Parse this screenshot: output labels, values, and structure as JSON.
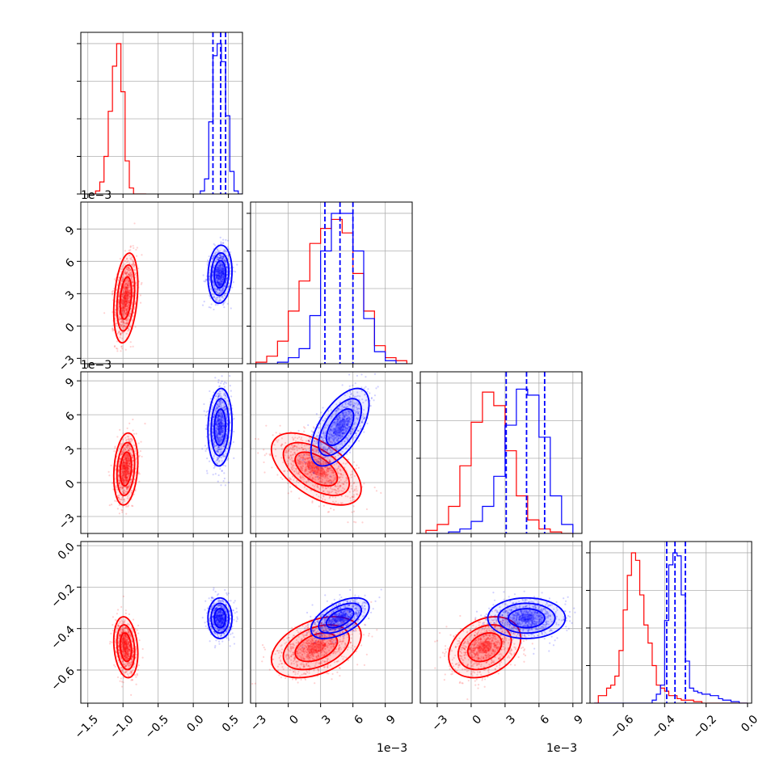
{
  "chart_data": {
    "type": "corner",
    "colors": {
      "red_series": "#ff0000",
      "blue_series": "#0000ff"
    },
    "grid": true,
    "parameters": [
      {
        "ticks": [
          "−1.5",
          "−1.0",
          "−0.5",
          "0.0",
          "0.5"
        ],
        "tick_values": [
          -1.5,
          -1.0,
          -0.5,
          0.0,
          0.5
        ],
        "range": [
          -1.6,
          0.7
        ],
        "offset_text": ""
      },
      {
        "ticks": [
          "−3",
          "0",
          "3",
          "6",
          "9"
        ],
        "tick_values": [
          -3,
          0,
          3,
          6,
          9
        ],
        "range": [
          -3.5,
          11.5
        ],
        "offset_text": "1e−3"
      },
      {
        "ticks": [
          "−3",
          "0",
          "3",
          "6",
          "9"
        ],
        "tick_values": [
          -3,
          0,
          3,
          6,
          9
        ],
        "range": [
          -4.5,
          9.8
        ],
        "offset_text": "1e−3"
      },
      {
        "ticks": [
          "−0.6",
          "−0.4",
          "−0.2",
          "0.0"
        ],
        "tick_values": [
          -0.6,
          -0.4,
          -0.2,
          0.0
        ],
        "range": [
          -0.76,
          0.02
        ],
        "offset_text": ""
      }
    ],
    "series": [
      {
        "color": "#ff0000",
        "means": [
          -0.96,
          2.6,
          1.2,
          -0.49
        ],
        "sds": [
          0.07,
          1.7,
          1.3,
          0.06
        ],
        "corr": [
          [
            1,
            0.3
          ],
          [
            1,
            3
          ],
          0.2,
          -0.55,
          0.4,
          0.3
        ]
      },
      {
        "color": "#0000ff",
        "means": [
          0.38,
          4.8,
          4.9,
          -0.35
        ],
        "sds": [
          0.07,
          1.1,
          1.4,
          0.04
        ],
        "corr": [
          [
            1,
            0.1
          ],
          [
            1,
            3
          ],
          0.1,
          0.6,
          0.0,
          0.0
        ]
      }
    ],
    "quantile_lines": [
      [
        0.28,
        0.39,
        0.46
      ],
      [
        3.4,
        4.8,
        6.0
      ],
      [
        3.1,
        4.9,
        6.5
      ],
      [
        -0.39,
        -0.35,
        -0.3
      ]
    ],
    "histograms": [
      {
        "edges": [
          -1.45,
          -1.39,
          -1.33,
          -1.27,
          -1.21,
          -1.15,
          -1.09,
          -1.03,
          -0.97,
          -0.91,
          -0.85,
          -0.79,
          -0.73,
          -0.67
        ],
        "red": [
          0.0,
          0.02,
          0.08,
          0.25,
          0.55,
          0.85,
          1.0,
          0.68,
          0.22,
          0.04,
          0.0,
          0.0,
          0.0
        ],
        "edges_b": [
          0.1,
          0.16,
          0.22,
          0.28,
          0.34,
          0.4,
          0.46,
          0.52,
          0.58,
          0.64,
          0.7
        ],
        "blue": [
          0.02,
          0.1,
          0.48,
          0.92,
          1.0,
          0.88,
          0.52,
          0.15,
          0.02,
          0.0
        ]
      },
      {
        "edges": [
          -3,
          -2,
          -1,
          0,
          1,
          2,
          3,
          4,
          5,
          6,
          7,
          8,
          9,
          10,
          11
        ],
        "red": [
          0.01,
          0.05,
          0.15,
          0.35,
          0.55,
          0.8,
          0.9,
          0.96,
          0.87,
          0.6,
          0.35,
          0.12,
          0.04,
          0.02
        ],
        "blue": [
          0.0,
          0.0,
          0.01,
          0.04,
          0.1,
          0.32,
          0.75,
          1.0,
          1.0,
          0.75,
          0.3,
          0.08,
          0.02,
          0.0
        ]
      },
      {
        "edges": [
          -4,
          -3,
          -2,
          -1,
          0,
          1,
          2,
          3,
          4,
          5,
          6,
          7,
          8,
          9
        ],
        "red": [
          0.02,
          0.06,
          0.18,
          0.45,
          0.74,
          0.94,
          0.85,
          0.55,
          0.25,
          0.09,
          0.03,
          0.01,
          0.0
        ],
        "blue": [
          0.0,
          0.0,
          0.01,
          0.03,
          0.08,
          0.18,
          0.38,
          0.72,
          0.96,
          0.92,
          0.64,
          0.25,
          0.06
        ]
      },
      {
        "edges": [
          -0.74,
          -0.72,
          -0.7,
          -0.68,
          -0.66,
          -0.64,
          -0.62,
          -0.6,
          -0.58,
          -0.56,
          -0.54,
          -0.52,
          -0.5,
          -0.48,
          -0.46,
          -0.44,
          -0.42,
          -0.4,
          -0.38,
          -0.36,
          -0.34,
          -0.32,
          -0.3,
          -0.28,
          -0.26,
          -0.24,
          -0.22,
          -0.2,
          -0.18,
          -0.16,
          -0.14,
          -0.12,
          -0.1,
          -0.08,
          -0.06,
          -0.04,
          -0.02,
          0.0
        ],
        "red": [
          0.0,
          0.05,
          0.05,
          0.1,
          0.12,
          0.18,
          0.35,
          0.62,
          0.85,
          1.0,
          0.95,
          0.72,
          0.52,
          0.4,
          0.25,
          0.12,
          0.1,
          0.08,
          0.05,
          0.05,
          0.03,
          0.02,
          0.02,
          0.02,
          0.01,
          0.01,
          0.0,
          0.0,
          0.0,
          0.0,
          0.0,
          0.0,
          0.0,
          0.0,
          0.0,
          0.0,
          0.0
        ],
        "blue": [
          0.0,
          0.0,
          0.0,
          0.0,
          0.0,
          0.0,
          0.0,
          0.0,
          0.0,
          0.0,
          0.0,
          0.0,
          0.0,
          0.0,
          0.02,
          0.06,
          0.12,
          0.55,
          0.92,
          1.0,
          0.98,
          0.72,
          0.28,
          0.1,
          0.08,
          0.07,
          0.06,
          0.06,
          0.05,
          0.05,
          0.03,
          0.02,
          0.02,
          0.01,
          0.01,
          0.0,
          0.0
        ]
      }
    ]
  }
}
